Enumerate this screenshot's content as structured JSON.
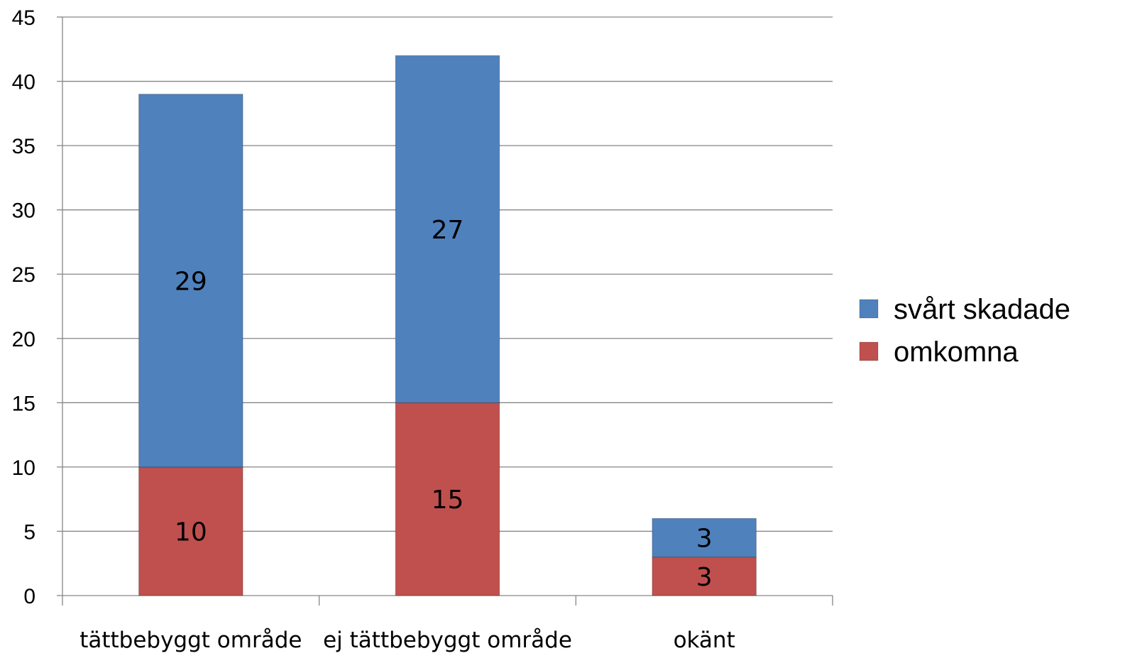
{
  "chart_data": {
    "type": "bar",
    "stacked": true,
    "title": "",
    "xlabel": "",
    "ylabel": "",
    "categories": [
      "tättbebyggt område",
      "ej tättbebyggt område",
      "okänt"
    ],
    "series": [
      {
        "name": "omkomna",
        "values": [
          10,
          15,
          3
        ],
        "color": "#C0504D"
      },
      {
        "name": "svårt skadade",
        "values": [
          29,
          27,
          3
        ],
        "color": "#4F81BD"
      }
    ],
    "ylim": [
      0,
      45
    ],
    "yticks": [
      0,
      5,
      10,
      15,
      20,
      25,
      30,
      35,
      40,
      45
    ],
    "grid": true,
    "data_labels": true,
    "legend": {
      "placement": "right",
      "order": [
        "svårt skadade",
        "omkomna"
      ]
    }
  }
}
